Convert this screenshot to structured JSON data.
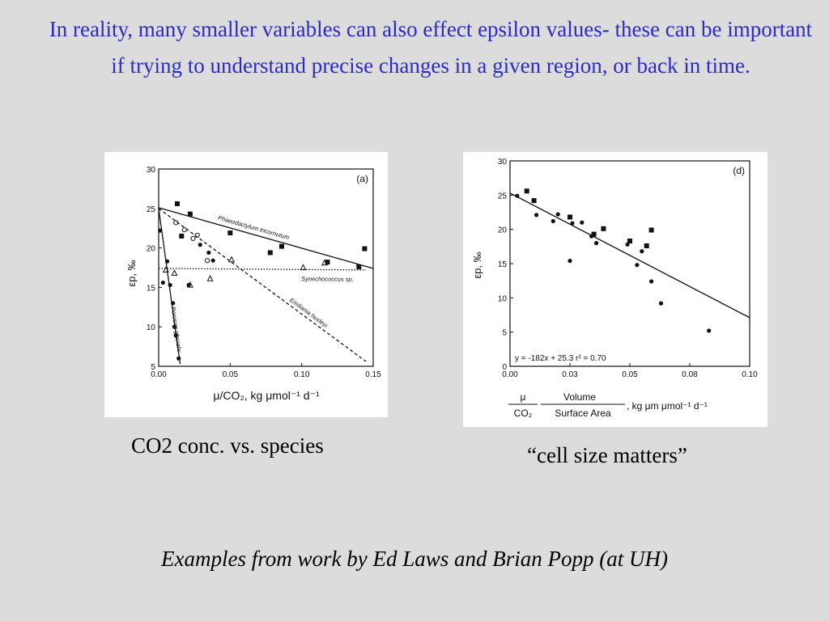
{
  "slide": {
    "title": "In reality, many smaller variables can also effect epsilon values- these can be important if trying to understand precise changes in a given region, or back in time.",
    "caption_left": "CO2 conc. vs. species",
    "caption_right": "“cell size matters”",
    "footer": "Examples from work by Ed Laws and Brian Popp (at UH)",
    "colors": {
      "title": "#2b2bc8",
      "background": "#dcdcdc"
    }
  },
  "chart_data": [
    {
      "type": "scatter",
      "panel_label": "(a)",
      "ylabel": "εp, ‰",
      "xlabel": "μ/CO₂, kg μmol⁻¹ d⁻¹",
      "xlim": [
        0,
        0.15
      ],
      "ylim": [
        5,
        30
      ],
      "xticks": [
        "0.00",
        "0.05",
        "0.10",
        "0.15"
      ],
      "yticks": [
        "5",
        "10",
        "15",
        "20",
        "25",
        "30"
      ],
      "series": [
        {
          "name": "Phaeodactylum tricornutum",
          "marker": "square",
          "points": [
            [
              0.013,
              25.6
            ],
            [
              0.022,
              24.3
            ],
            [
              0.016,
              21.5
            ],
            [
              0.05,
              21.9
            ],
            [
              0.078,
              19.4
            ],
            [
              0.086,
              20.2
            ],
            [
              0.118,
              18.2
            ],
            [
              0.14,
              17.6
            ],
            [
              0.144,
              19.9
            ]
          ],
          "fit": [
            [
              0,
              25.1
            ],
            [
              0.15,
              17.4
            ]
          ],
          "fit_style": "solid"
        },
        {
          "name": "Emiliania huxleyi",
          "marker": "circle-open",
          "points": [
            [
              0.012,
              23.2
            ],
            [
              0.018,
              22.3
            ],
            [
              0.024,
              21.2
            ],
            [
              0.027,
              21.6
            ],
            [
              0.034,
              18.4
            ]
          ],
          "fit": [
            [
              0,
              25.0
            ],
            [
              0.145,
              5.6
            ]
          ],
          "fit_style": "dashed"
        },
        {
          "name": "Synechococcus sp.",
          "marker": "triangle-open",
          "points": [
            [
              0.005,
              17.2
            ],
            [
              0.011,
              16.8
            ],
            [
              0.022,
              15.3
            ],
            [
              0.036,
              16.1
            ],
            [
              0.051,
              18.5
            ],
            [
              0.101,
              17.5
            ],
            [
              0.116,
              18.1
            ]
          ],
          "fit": [
            [
              0,
              17.4
            ],
            [
              0.145,
              17.2
            ]
          ],
          "fit_style": "dotted"
        },
        {
          "name": "Porosira glacialis",
          "marker": "circle",
          "points": [
            [
              0.001,
              22.2
            ],
            [
              0.003,
              15.6
            ],
            [
              0.006,
              18.3
            ],
            [
              0.008,
              15.3
            ],
            [
              0.01,
              13.0
            ],
            [
              0.011,
              10.0
            ],
            [
              0.012,
              8.9
            ],
            [
              0.014,
              6.0
            ],
            [
              0.021,
              15.3
            ],
            [
              0.038,
              18.4
            ],
            [
              0.035,
              19.4
            ],
            [
              0.029,
              20.4
            ]
          ],
          "fit": [
            [
              0,
              25.0
            ],
            [
              0.015,
              5.3
            ]
          ],
          "fit_style": "solid"
        }
      ]
    },
    {
      "type": "scatter",
      "panel_label": "(d)",
      "ylabel": "εp, ‰",
      "xlabel_terms": [
        "μ",
        "Volume",
        "CO₂",
        "Surface Area"
      ],
      "xlabel_units": ", kg μm μmol⁻¹ d⁻¹",
      "xlim": [
        0,
        0.1
      ],
      "ylim": [
        0,
        30
      ],
      "xticks": [
        "0.00",
        "0.03",
        "0.05",
        "0.08",
        "0.10"
      ],
      "yticks": [
        "0",
        "5",
        "10",
        "15",
        "20",
        "25",
        "30"
      ],
      "equation": "y = -182x + 25.3   r² = 0.70",
      "series": [
        {
          "marker": "square",
          "points": [
            [
              0.007,
              25.6
            ],
            [
              0.01,
              24.2
            ],
            [
              0.025,
              21.8
            ],
            [
              0.035,
              19.3
            ],
            [
              0.039,
              20.1
            ],
            [
              0.05,
              18.3
            ],
            [
              0.057,
              17.6
            ],
            [
              0.059,
              19.9
            ]
          ],
          "fit": [
            [
              0,
              25.3
            ],
            [
              0.1,
              7.1
            ]
          ],
          "fit_style": "solid"
        },
        {
          "marker": "circle",
          "points": [
            [
              0.003,
              24.9
            ],
            [
              0.011,
              22.1
            ],
            [
              0.018,
              21.2
            ],
            [
              0.026,
              20.9
            ],
            [
              0.03,
              21.0
            ],
            [
              0.034,
              19.0
            ],
            [
              0.036,
              18.0
            ],
            [
              0.02,
              22.2
            ],
            [
              0.025,
              15.4
            ],
            [
              0.049,
              17.8
            ],
            [
              0.053,
              14.8
            ],
            [
              0.055,
              16.8
            ],
            [
              0.059,
              12.4
            ],
            [
              0.063,
              9.2
            ],
            [
              0.083,
              5.2
            ]
          ]
        }
      ]
    }
  ]
}
